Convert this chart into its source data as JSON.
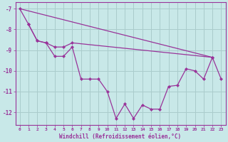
{
  "bg_color": "#c8e8e8",
  "grid_color": "#aacccc",
  "line_color": "#993399",
  "marker_color": "#993399",
  "xlabel": "Windchill (Refroidissement éolien,°C)",
  "xlim": [
    -0.5,
    23.5
  ],
  "ylim": [
    -12.6,
    -6.7
  ],
  "yticks": [
    -12,
    -11,
    -10,
    -9,
    -8,
    -7
  ],
  "xticks": [
    0,
    1,
    2,
    3,
    4,
    5,
    6,
    7,
    8,
    9,
    10,
    11,
    12,
    13,
    14,
    15,
    16,
    17,
    18,
    19,
    20,
    21,
    22,
    23
  ],
  "line1_x": [
    0,
    1,
    2,
    3,
    4,
    5,
    6,
    7,
    8,
    9,
    10,
    11,
    12,
    13,
    14,
    15,
    16,
    17,
    18,
    19,
    20,
    21,
    22,
    23
  ],
  "line1_y": [
    -7.0,
    -7.75,
    -8.55,
    -8.65,
    -9.3,
    -9.3,
    -8.85,
    -10.4,
    -10.4,
    -10.4,
    -11.0,
    -12.3,
    -11.6,
    -12.3,
    -11.65,
    -11.85,
    -11.85,
    -10.75,
    -10.7,
    -9.9,
    -10.0,
    -10.4,
    -9.35,
    -10.4
  ],
  "line2_x": [
    1,
    2,
    3,
    4,
    5,
    6,
    22
  ],
  "line2_y": [
    -7.75,
    -8.55,
    -8.65,
    -8.85,
    -8.85,
    -8.65,
    -9.35
  ],
  "line3_x": [
    0,
    22
  ],
  "line3_y": [
    -7.0,
    -9.35
  ]
}
